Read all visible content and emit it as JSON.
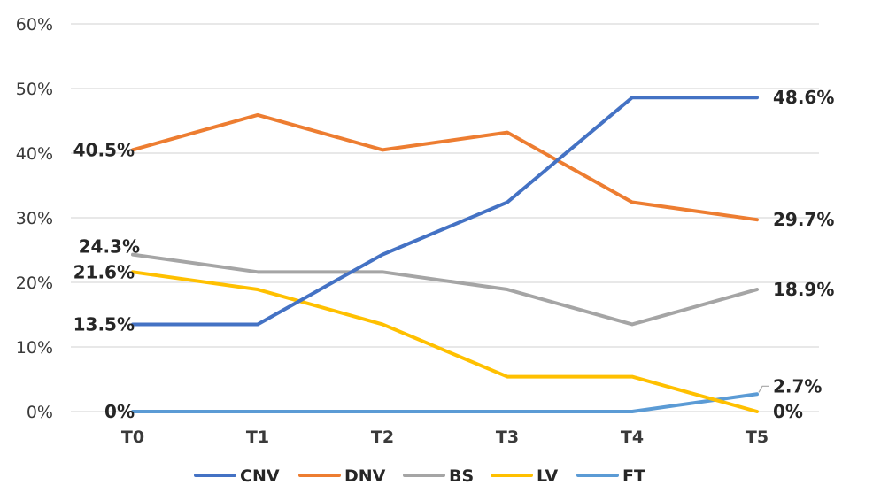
{
  "chart_data": {
    "type": "line",
    "categories": [
      "T0",
      "T1",
      "T2",
      "T3",
      "T4",
      "T5"
    ],
    "ylim": [
      0,
      60
    ],
    "yticks": [
      "0%",
      "10%",
      "20%",
      "30%",
      "40%",
      "50%",
      "60%"
    ],
    "grid": true,
    "legend_position": "bottom",
    "series": [
      {
        "name": "CNV",
        "color": "#4472C4",
        "values": [
          13.5,
          13.5,
          24.3,
          32.4,
          48.6,
          48.6
        ]
      },
      {
        "name": "DNV",
        "color": "#ED7D31",
        "values": [
          40.5,
          45.9,
          40.5,
          43.2,
          32.4,
          29.7
        ]
      },
      {
        "name": "BS",
        "color": "#A5A5A5",
        "values": [
          24.3,
          21.6,
          21.6,
          18.9,
          13.5,
          18.9
        ]
      },
      {
        "name": "LV",
        "color": "#FFC000",
        "values": [
          21.6,
          18.9,
          13.5,
          5.4,
          5.4,
          0
        ]
      },
      {
        "name": "FT",
        "color": "#5B9BD5",
        "values": [
          0,
          0,
          0,
          0,
          0,
          2.7
        ]
      }
    ],
    "data_labels": [
      {
        "series": "DNV",
        "index": 0,
        "text": "40.5%",
        "side": "left"
      },
      {
        "series": "BS",
        "index": 0,
        "text": "24.3%",
        "side": "left-above"
      },
      {
        "series": "LV",
        "index": 0,
        "text": "21.6%",
        "side": "left"
      },
      {
        "series": "CNV",
        "index": 0,
        "text": "13.5%",
        "side": "left"
      },
      {
        "series": "FT",
        "index": 0,
        "text": "0%",
        "side": "left"
      },
      {
        "series": "CNV",
        "index": 5,
        "text": "48.6%",
        "side": "right"
      },
      {
        "series": "DNV",
        "index": 5,
        "text": "29.7%",
        "side": "right"
      },
      {
        "series": "BS",
        "index": 5,
        "text": "18.9%",
        "side": "right"
      },
      {
        "series": "FT",
        "index": 5,
        "text": "2.7%",
        "side": "right-above"
      },
      {
        "series": "LV",
        "index": 5,
        "text": "0%",
        "side": "right"
      }
    ]
  }
}
